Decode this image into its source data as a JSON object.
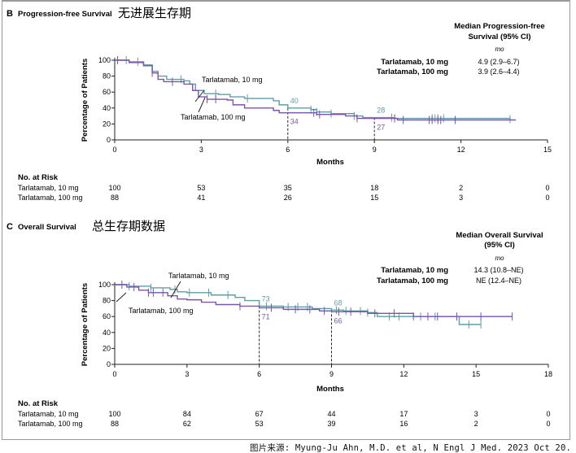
{
  "source": "图片来源: Myung-Ju Ahn, M.D. et al, N Engl J Med. 2023 Oct 20.",
  "chart_data": [
    {
      "type": "line",
      "panel_letter": "B",
      "title": "Progression-free Survival",
      "title_cn": "无进展生存期",
      "xlabel": "Months",
      "ylabel": "Percentage of Patients",
      "xlim": [
        0,
        15
      ],
      "ylim": [
        0,
        100
      ],
      "xticks": [
        0,
        3,
        6,
        9,
        12,
        15
      ],
      "yticks": [
        0,
        20,
        40,
        60,
        80,
        100
      ],
      "grid": false,
      "colors": {
        "Tarlatamab, 10 mg": "#5f9ea3",
        "Tarlatamab, 100 mg": "#7a55a8"
      },
      "median_header": [
        "Median Progression-free",
        "Survival (95% CI)"
      ],
      "median_unit": "mo",
      "medians": [
        {
          "label": "Tarlatamab, 10 mg",
          "value": "4.9 (2.9–6.7)"
        },
        {
          "label": "Tarlatamab, 100 mg",
          "value": "3.9 (2.6–4.4)"
        }
      ],
      "series": [
        {
          "name": "Tarlatamab, 10 mg",
          "color": "#5f9ea3",
          "x": [
            0,
            0.5,
            1,
            1.3,
            1.5,
            1.8,
            2.4,
            2.6,
            2.8,
            3.1,
            3.6,
            4,
            4.5,
            5.5,
            5.7,
            6,
            6.8,
            7,
            7.5,
            8.3,
            8.6,
            9,
            9.7,
            13.7
          ],
          "y": [
            100,
            98,
            94,
            86,
            80,
            76,
            74,
            70,
            62,
            58,
            57,
            54,
            52,
            49,
            44,
            40,
            38,
            35,
            33,
            30,
            28,
            28,
            27,
            26
          ],
          "censored": [
            0.1,
            0.4,
            0.8,
            2.3,
            3.5,
            4.6,
            6.8,
            7,
            7.5,
            8.3,
            9.6,
            9.7,
            11,
            11.1,
            11.2,
            11.4,
            13.7
          ]
        },
        {
          "name": "Tarlatamab, 100 mg",
          "color": "#7a55a8",
          "x": [
            0,
            0.5,
            1,
            1.3,
            1.5,
            1.7,
            2.4,
            2.7,
            2.9,
            3.2,
            3.9,
            4.1,
            4.5,
            5.5,
            5.7,
            6,
            7,
            8,
            8.4,
            9,
            9.8,
            13.9
          ],
          "y": [
            100,
            97,
            93,
            84,
            76,
            73,
            70,
            62,
            54,
            51,
            50,
            44,
            40,
            37,
            34,
            34,
            32,
            30,
            27,
            27,
            25,
            25
          ],
          "censored": [
            0.1,
            1.3,
            2,
            3.2,
            3.5,
            6.9,
            7.1,
            8.4,
            9.7,
            10,
            10.9,
            11,
            11.2,
            11.3,
            11.8
          ]
        }
      ],
      "annotations": [
        {
          "text": "40",
          "x": 6,
          "series": "Tarlatamab, 10 mg"
        },
        {
          "text": "34",
          "x": 6,
          "series": "Tarlatamab, 100 mg"
        },
        {
          "text": "28",
          "x": 9,
          "series": "Tarlatamab, 10 mg"
        },
        {
          "text": "27",
          "x": 9,
          "series": "Tarlatamab, 100 mg"
        }
      ],
      "risk": {
        "title": "No. at Risk",
        "rows": [
          {
            "label": "Tarlatamab, 10 mg",
            "values": [
              100,
              53,
              35,
              18,
              2,
              0
            ]
          },
          {
            "label": "Tarlatamab, 100 mg",
            "values": [
              88,
              41,
              26,
              15,
              3,
              0
            ]
          }
        ]
      }
    },
    {
      "type": "line",
      "panel_letter": "C",
      "title": "Overall Survival",
      "title_cn": "总生存期数据",
      "xlabel": "Months",
      "ylabel": "Percentage of Patients",
      "xlim": [
        0,
        18
      ],
      "ylim": [
        0,
        100
      ],
      "xticks": [
        0,
        3,
        6,
        9,
        12,
        15,
        18
      ],
      "yticks": [
        0,
        20,
        40,
        60,
        80,
        100
      ],
      "grid": false,
      "colors": {
        "Tarlatamab, 10 mg": "#5f9ea3",
        "Tarlatamab, 100 mg": "#7a55a8"
      },
      "median_header": [
        "Median Overall Survival",
        "(95% CI)"
      ],
      "median_unit": "mo",
      "medians": [
        {
          "label": "Tarlatamab, 10 mg",
          "value": "14.3 (10.8–NE)"
        },
        {
          "label": "Tarlatamab, 100 mg",
          "value": "NE (12.4–NE)"
        }
      ],
      "series": [
        {
          "name": "Tarlatamab, 10 mg",
          "color": "#5f9ea3",
          "x": [
            0,
            0.6,
            1.5,
            2.3,
            2.6,
            3,
            4,
            5,
            5.4,
            6,
            7,
            8.2,
            9,
            9.5,
            10.5,
            10.9,
            13.5,
            14.3,
            15.2
          ],
          "y": [
            100,
            98,
            96,
            94,
            91,
            90,
            87,
            84,
            80,
            73,
            72,
            70,
            68,
            67,
            65,
            60,
            60,
            50,
            50
          ],
          "censored": [
            0.6,
            1.5,
            2.5,
            3.1,
            3.9,
            4.7,
            6.3,
            7.2,
            7.6,
            8,
            9.2,
            9.6,
            10.2,
            10.5,
            11.4,
            11.8,
            12.7,
            13.3,
            14.7,
            15.2
          ]
        },
        {
          "name": "Tarlatamab, 100 mg",
          "color": "#7a55a8",
          "x": [
            0,
            0.5,
            1,
            1.4,
            2,
            2.2,
            2.6,
            3,
            3.6,
            4.2,
            5.2,
            6,
            7,
            8.5,
            9,
            10.5,
            12.4,
            16.5
          ],
          "y": [
            100,
            97,
            93,
            90,
            90,
            86,
            82,
            81,
            78,
            75,
            73,
            71,
            69,
            67,
            66,
            64,
            60,
            60
          ],
          "censored": [
            0.3,
            0.8,
            1.4,
            1.6,
            2,
            5.2,
            6.5,
            7.5,
            8.1,
            8.7,
            9.3,
            9.8,
            10.8,
            11.6,
            12.4,
            13,
            13.4,
            14.2,
            15.2,
            16.5
          ]
        }
      ],
      "annotations": [
        {
          "text": "73",
          "x": 6,
          "series": "Tarlatamab, 10 mg"
        },
        {
          "text": "71",
          "x": 6,
          "series": "Tarlatamab, 100 mg"
        },
        {
          "text": "68",
          "x": 9,
          "series": "Tarlatamab, 10 mg"
        },
        {
          "text": "66",
          "x": 9,
          "series": "Tarlatamab, 100 mg"
        }
      ],
      "risk": {
        "title": "No. at Risk",
        "rows": [
          {
            "label": "Tarlatamab, 10 mg",
            "values": [
              100,
              84,
              67,
              44,
              17,
              3,
              0
            ]
          },
          {
            "label": "Tarlatamab, 100 mg",
            "values": [
              88,
              62,
              53,
              39,
              16,
              2,
              0
            ]
          }
        ]
      }
    }
  ]
}
